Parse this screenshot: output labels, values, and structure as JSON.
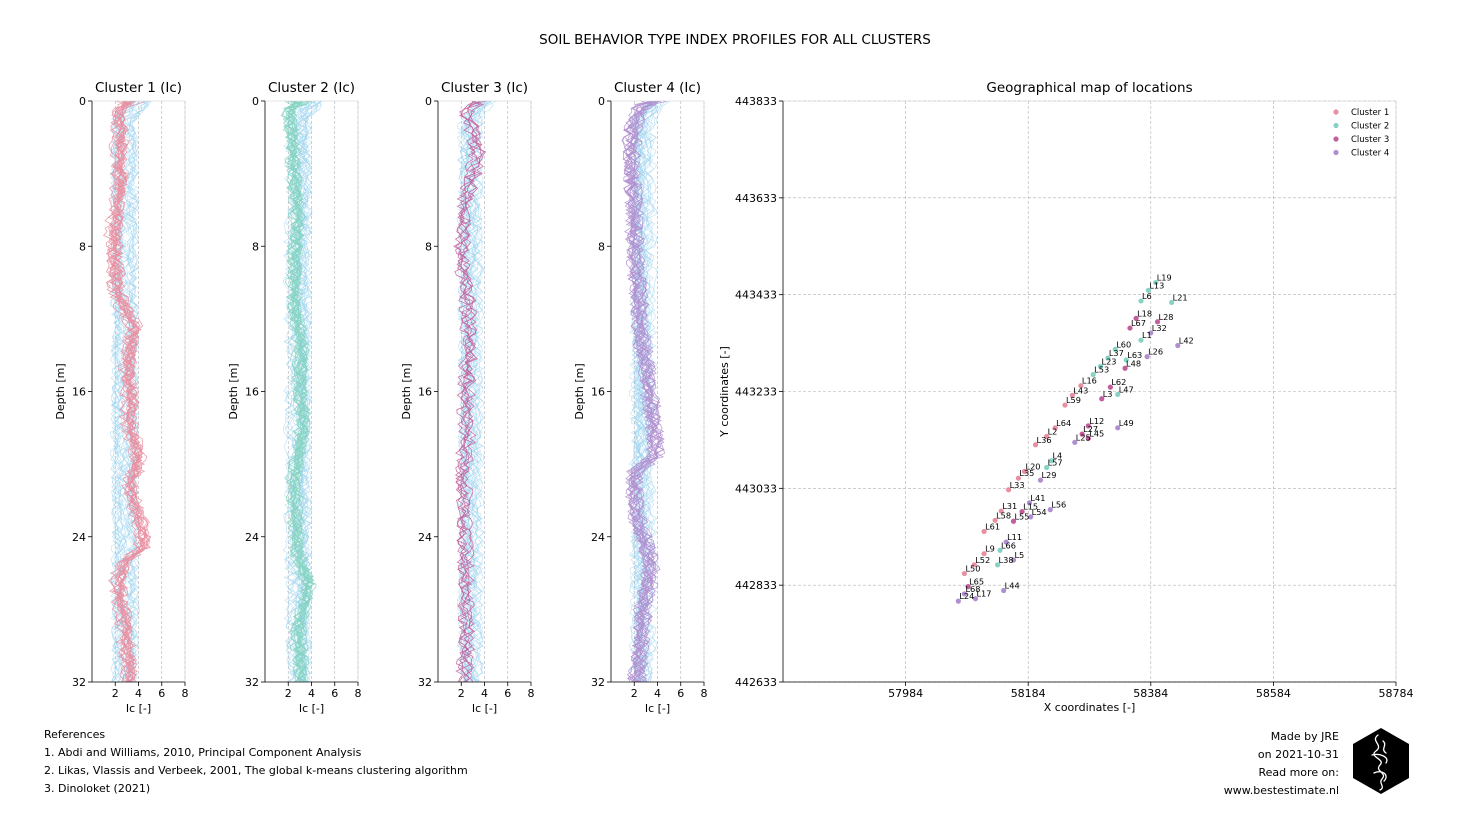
{
  "suptitle": "SOIL BEHAVIOR TYPE INDEX PROFILES FOR ALL CLUSTERS",
  "colors": {
    "cluster1": "#e88fa1",
    "cluster2": "#86d3c3",
    "cluster3": "#c25e9b",
    "cluster4": "#b08fd0",
    "background_lines": "#9fd4f0",
    "grid": "#b0b0b0"
  },
  "profiles": {
    "xlabel": "Ic [-]",
    "ylabel": "Depth [m]",
    "xticks": [
      2,
      4,
      6,
      8
    ],
    "yticks": [
      0,
      8,
      16,
      24,
      32
    ],
    "xlim": [
      0,
      8
    ],
    "ylim": [
      0,
      32
    ]
  },
  "chart_data": [
    {
      "type": "line",
      "title": "Cluster 1 (Ic)",
      "xlabel": "Ic [-]",
      "ylabel": "Depth [m]",
      "xlim": [
        0,
        8
      ],
      "ylim": [
        32,
        0
      ],
      "series": [
        {
          "name": "Cluster 1 mean",
          "x": [
            2.2,
            2.4,
            2.3,
            2.4,
            2.2,
            2.0,
            1.8,
            1.9,
            2.0,
            2.1,
            2.8,
            3.6,
            3.2,
            3.0,
            3.1,
            3.3,
            3.2,
            3.4,
            4.0,
            3.6,
            3.2,
            3.8,
            4.2,
            4.4,
            2.6,
            2.2,
            2.4,
            2.8,
            3.0,
            3.2
          ],
          "y": [
            0.5,
            1.5,
            3,
            4.5,
            5.5,
            6.5,
            7.5,
            8.5,
            9.5,
            10.5,
            11.5,
            12.5,
            13.5,
            14.5,
            15.5,
            16.5,
            17.5,
            18.5,
            19.5,
            20.5,
            21.5,
            22.5,
            23.5,
            24.5,
            25.5,
            26.5,
            27.5,
            29,
            30.5,
            31.5
          ]
        }
      ]
    },
    {
      "type": "line",
      "title": "Cluster 2 (Ic)",
      "xlabel": "Ic [-]",
      "ylabel": "Depth [m]",
      "xlim": [
        0,
        8
      ],
      "ylim": [
        32,
        0
      ],
      "series": [
        {
          "name": "Cluster 2 mean",
          "x": [
            2.0,
            2.2,
            2.4,
            2.5,
            2.6,
            2.7,
            2.6,
            2.5,
            2.5,
            2.4,
            2.5,
            2.8,
            3.0,
            3.0,
            2.9,
            3.0,
            3.2,
            3.0,
            2.7,
            2.5,
            2.4,
            2.5,
            2.6,
            2.6,
            3.0,
            3.6,
            3.4,
            2.8,
            2.9,
            3.0
          ],
          "y": [
            0.5,
            1.5,
            3,
            4.5,
            5.5,
            6.5,
            7.5,
            8.5,
            9.5,
            10.5,
            11.5,
            12.5,
            13.5,
            14.5,
            15.5,
            16.5,
            17.5,
            18.5,
            19.5,
            20.5,
            21.5,
            22.5,
            23.5,
            24.5,
            25.5,
            26.5,
            27.5,
            29,
            30.5,
            31.5
          ]
        }
      ]
    },
    {
      "type": "line",
      "title": "Cluster 3 (Ic)",
      "xlabel": "Ic [-]",
      "ylabel": "Depth [m]",
      "xlim": [
        0,
        8
      ],
      "ylim": [
        32,
        0
      ],
      "series": [
        {
          "name": "Cluster 3 mean",
          "x": [
            2.3,
            3.0,
            3.4,
            2.8,
            2.4,
            2.2,
            2.1,
            2.1,
            2.2,
            2.4,
            2.6,
            2.7,
            2.7,
            2.6,
            2.5,
            2.4,
            2.5,
            2.5,
            2.3,
            2.1,
            2.2,
            2.2,
            2.2,
            2.3,
            2.3,
            2.3,
            2.4,
            2.4,
            2.4,
            2.4
          ],
          "y": [
            0.5,
            1.5,
            3,
            4.5,
            5.5,
            6.5,
            7.5,
            8.5,
            9.5,
            10.5,
            11.5,
            12.5,
            13.5,
            14.5,
            15.5,
            16.5,
            17.5,
            18.5,
            19.5,
            20.5,
            21.5,
            22.5,
            23.5,
            24.5,
            25.5,
            26.5,
            27.5,
            29,
            30.5,
            31.5
          ]
        }
      ]
    },
    {
      "type": "line",
      "title": "Cluster 4 (Ic)",
      "xlabel": "Ic [-]",
      "ylabel": "Depth [m]",
      "xlim": [
        0,
        8
      ],
      "ylim": [
        32,
        0
      ],
      "series": [
        {
          "name": "Cluster 4 mean",
          "x": [
            2.4,
            1.8,
            1.7,
            1.8,
            1.9,
            2.0,
            2.0,
            2.1,
            2.2,
            2.3,
            2.4,
            2.5,
            2.7,
            3.0,
            3.2,
            3.4,
            3.5,
            3.7,
            3.8,
            2.0,
            2.0,
            2.1,
            2.4,
            3.0,
            3.4,
            3.2,
            2.8,
            2.6,
            2.4,
            2.2
          ],
          "y": [
            0.5,
            1.5,
            3,
            4.5,
            5.5,
            6.5,
            7.5,
            8.5,
            9.5,
            10.5,
            11.5,
            12.5,
            13.5,
            14.5,
            15.5,
            16.5,
            17.5,
            18.5,
            19.5,
            20.5,
            21.5,
            22.5,
            23.5,
            24.5,
            25.5,
            26.5,
            27.5,
            29,
            30.5,
            31.5
          ]
        }
      ]
    },
    {
      "type": "scatter",
      "title": "Geographical map of locations",
      "xlabel": "X coordinates [-]",
      "ylabel": "Y coordinates [-]",
      "xlim": [
        57784,
        58784
      ],
      "ylim": [
        442633,
        443833
      ],
      "xticks": [
        57984,
        58184,
        58384,
        58584,
        58784
      ],
      "yticks": [
        442633,
        442833,
        443033,
        443233,
        443433,
        443633,
        443833
      ],
      "grid": true,
      "legend_position": "top-right",
      "legend": [
        "Cluster 1",
        "Cluster 2",
        "Cluster 3",
        "Cluster 4"
      ],
      "points": [
        {
          "label": "L19",
          "x": 58392,
          "y": 443458,
          "cluster": 2
        },
        {
          "label": "L13",
          "x": 58380,
          "y": 443442,
          "cluster": 2
        },
        {
          "label": "L21",
          "x": 58418,
          "y": 443417,
          "cluster": 2
        },
        {
          "label": "L6",
          "x": 58368,
          "y": 443420,
          "cluster": 2
        },
        {
          "label": "L18",
          "x": 58360,
          "y": 443384,
          "cluster": 3
        },
        {
          "label": "L28",
          "x": 58395,
          "y": 443377,
          "cluster": 3
        },
        {
          "label": "L67",
          "x": 58350,
          "y": 443364,
          "cluster": 3
        },
        {
          "label": "L32",
          "x": 58384,
          "y": 443354,
          "cluster": 4
        },
        {
          "label": "L1",
          "x": 58368,
          "y": 443339,
          "cluster": 2
        },
        {
          "label": "L42",
          "x": 58428,
          "y": 443328,
          "cluster": 4
        },
        {
          "label": "L60",
          "x": 58326,
          "y": 443320,
          "cluster": 2
        },
        {
          "label": "L26",
          "x": 58378,
          "y": 443305,
          "cluster": 4
        },
        {
          "label": "L37",
          "x": 58314,
          "y": 443302,
          "cluster": 2
        },
        {
          "label": "L63",
          "x": 58344,
          "y": 443298,
          "cluster": 2
        },
        {
          "label": "L23",
          "x": 58302,
          "y": 443285,
          "cluster": 2
        },
        {
          "label": "L48",
          "x": 58342,
          "y": 443281,
          "cluster": 3
        },
        {
          "label": "L53",
          "x": 58290,
          "y": 443268,
          "cluster": 2
        },
        {
          "label": "L16",
          "x": 58270,
          "y": 443245,
          "cluster": 1
        },
        {
          "label": "L62",
          "x": 58318,
          "y": 443242,
          "cluster": 3
        },
        {
          "label": "L47",
          "x": 58330,
          "y": 443227,
          "cluster": 2
        },
        {
          "label": "L43",
          "x": 58256,
          "y": 443225,
          "cluster": 1
        },
        {
          "label": "L3",
          "x": 58304,
          "y": 443218,
          "cluster": 3
        },
        {
          "label": "L59",
          "x": 58244,
          "y": 443205,
          "cluster": 1
        },
        {
          "label": "L12",
          "x": 58282,
          "y": 443162,
          "cluster": 3
        },
        {
          "label": "L49",
          "x": 58330,
          "y": 443158,
          "cluster": 4
        },
        {
          "label": "L64",
          "x": 58228,
          "y": 443158,
          "cluster": 1
        },
        {
          "label": "L27",
          "x": 58272,
          "y": 443145,
          "cluster": 3
        },
        {
          "label": "L45",
          "x": 58282,
          "y": 443136,
          "cluster": 3
        },
        {
          "label": "L2",
          "x": 58214,
          "y": 443140,
          "cluster": 1
        },
        {
          "label": "L25",
          "x": 58260,
          "y": 443128,
          "cluster": 4
        },
        {
          "label": "L36",
          "x": 58196,
          "y": 443123,
          "cluster": 1
        },
        {
          "label": "L4",
          "x": 58222,
          "y": 443090,
          "cluster": 2
        },
        {
          "label": "L57",
          "x": 58214,
          "y": 443076,
          "cluster": 2
        },
        {
          "label": "L20",
          "x": 58178,
          "y": 443068,
          "cluster": 1
        },
        {
          "label": "L35",
          "x": 58168,
          "y": 443054,
          "cluster": 1
        },
        {
          "label": "L29",
          "x": 58204,
          "y": 443050,
          "cluster": 4
        },
        {
          "label": "L33",
          "x": 58152,
          "y": 443030,
          "cluster": 1
        },
        {
          "label": "L41",
          "x": 58186,
          "y": 443003,
          "cluster": 4
        },
        {
          "label": "L56",
          "x": 58220,
          "y": 442989,
          "cluster": 4
        },
        {
          "label": "L31",
          "x": 58140,
          "y": 442986,
          "cluster": 1
        },
        {
          "label": "L15",
          "x": 58174,
          "y": 442985,
          "cluster": 3
        },
        {
          "label": "L54",
          "x": 58188,
          "y": 442974,
          "cluster": 4
        },
        {
          "label": "L58",
          "x": 58130,
          "y": 442967,
          "cluster": 1
        },
        {
          "label": "L55",
          "x": 58160,
          "y": 442965,
          "cluster": 3
        },
        {
          "label": "L61",
          "x": 58112,
          "y": 442944,
          "cluster": 1
        },
        {
          "label": "L11",
          "x": 58148,
          "y": 442922,
          "cluster": 4
        },
        {
          "label": "L66",
          "x": 58138,
          "y": 442905,
          "cluster": 2
        },
        {
          "label": "L9",
          "x": 58112,
          "y": 442898,
          "cluster": 1
        },
        {
          "label": "L5",
          "x": 58160,
          "y": 442885,
          "cluster": 4
        },
        {
          "label": "L38",
          "x": 58134,
          "y": 442875,
          "cluster": 2
        },
        {
          "label": "L52",
          "x": 58096,
          "y": 442875,
          "cluster": 1
        },
        {
          "label": "L50",
          "x": 58080,
          "y": 442857,
          "cluster": 1
        },
        {
          "label": "L65",
          "x": 58086,
          "y": 442830,
          "cluster": 3
        },
        {
          "label": "L44",
          "x": 58144,
          "y": 442822,
          "cluster": 4
        },
        {
          "label": "L68",
          "x": 58080,
          "y": 442815,
          "cluster": 4
        },
        {
          "label": "L17",
          "x": 58098,
          "y": 442805,
          "cluster": 4
        },
        {
          "label": "L24",
          "x": 58070,
          "y": 442800,
          "cluster": 4
        }
      ]
    }
  ],
  "references": {
    "heading": "References",
    "items": [
      "1. Abdi and Williams, 2010, Principal Component Analysis",
      "2. Likas, Vlassis and Verbeek, 2001, The global k-means clustering algorithm",
      "3. Dinoloket (2021)"
    ]
  },
  "credits": {
    "made_by": "Made by JRE",
    "date": "on 2021-10-31",
    "read_more": "Read more on:",
    "website": "www.bestestimate.nl"
  },
  "logo_icon": "hexagon-squiggle-logo"
}
